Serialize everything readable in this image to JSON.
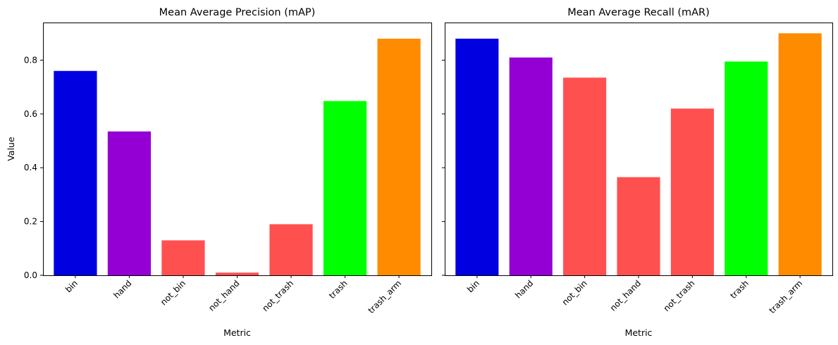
{
  "chart_data": [
    {
      "type": "bar",
      "title": "Mean Average Precision (mAP)",
      "xlabel": "Metric",
      "ylabel": "Value",
      "categories": [
        "bin",
        "hand",
        "not_bin",
        "not_hand",
        "not_trash",
        "trash",
        "trash_arm"
      ],
      "values": [
        0.76,
        0.535,
        0.13,
        0.01,
        0.19,
        0.648,
        0.88
      ],
      "colors": [
        "#0000e0",
        "#9400d3",
        "#ff5050",
        "#ff5050",
        "#ff5050",
        "#00ff00",
        "#ff8c00"
      ],
      "ylim": [
        0,
        0.94
      ],
      "yticks": [
        "0.0",
        "0.2",
        "0.4",
        "0.6",
        "0.8"
      ],
      "grid": false
    },
    {
      "type": "bar",
      "title": "Mean Average Recall (mAR)",
      "xlabel": "Metric",
      "ylabel": "",
      "categories": [
        "bin",
        "hand",
        "not_bin",
        "not_hand",
        "not_trash",
        "trash",
        "trash_arm"
      ],
      "values": [
        0.88,
        0.81,
        0.735,
        0.365,
        0.62,
        0.795,
        0.9
      ],
      "colors": [
        "#0000e0",
        "#9400d3",
        "#ff5050",
        "#ff5050",
        "#ff5050",
        "#00ff00",
        "#ff8c00"
      ],
      "ylim": [
        0,
        0.94
      ],
      "yticks": [
        "0.0",
        "0.2",
        "0.4",
        "0.6",
        "0.8"
      ],
      "grid": false
    }
  ]
}
